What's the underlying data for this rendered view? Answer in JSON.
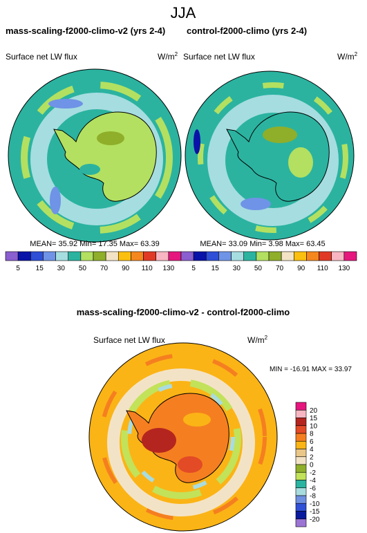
{
  "title": "JJA",
  "panels": [
    {
      "title": "mass-scaling-f2000-climo-v2 (yrs 2-4)",
      "variable": "Surface net LW flux",
      "units": {
        "base": "W/m",
        "sup": "2"
      },
      "stats": "MEAN= 35.92  Min= 17.35  Max= 63.39",
      "colorbar": {
        "colors": [
          "#8a5fcf",
          "#0a13a8",
          "#2e4fd6",
          "#6f93e6",
          "#a6dde0",
          "#2bb3a0",
          "#b3e060",
          "#8fae2a",
          "#f3e3c6",
          "#fbc00f",
          "#f5871f",
          "#e03a26",
          "#f7b6c2",
          "#e5177e"
        ],
        "labels": [
          5,
          15,
          30,
          50,
          70,
          90,
          110,
          130
        ]
      }
    },
    {
      "title": "control-f2000-climo (yrs 2-4)",
      "variable": "Surface net LW flux",
      "units": {
        "base": "W/m",
        "sup": "2"
      },
      "stats": "MEAN= 33.09  Min=   3.98  Max= 63.45",
      "colorbar": {
        "colors": [
          "#8a5fcf",
          "#0a13a8",
          "#2e4fd6",
          "#6f93e6",
          "#a6dde0",
          "#2bb3a0",
          "#b3e060",
          "#8fae2a",
          "#f3e3c6",
          "#fbc00f",
          "#f5871f",
          "#e03a26",
          "#f7b6c2",
          "#e5177e"
        ],
        "labels": [
          5,
          15,
          30,
          50,
          70,
          90,
          110,
          130
        ]
      }
    }
  ],
  "difference": {
    "title": "mass-scaling-f2000-climo-v2 - control-f2000-climo",
    "variable": "Surface net LW flux",
    "units": {
      "base": "W/m",
      "sup": "2"
    },
    "stats": "MIN = -16.91  MAX =  33.97",
    "colorbar": {
      "colors": [
        "#e5177e",
        "#f7b6c2",
        "#b5251f",
        "#e34a26",
        "#f57f20",
        "#fbb416",
        "#e9c788",
        "#f3e3c6",
        "#8fae2a",
        "#c2e25a",
        "#2ab3a0",
        "#a9dcdf",
        "#6f8fe0",
        "#3050d6",
        "#0a1a9e",
        "#9b74d4"
      ],
      "labels": [
        20,
        15,
        10,
        8,
        6,
        4,
        2,
        0,
        -2,
        -4,
        -6,
        -8,
        -10,
        -15,
        -20
      ]
    }
  }
}
